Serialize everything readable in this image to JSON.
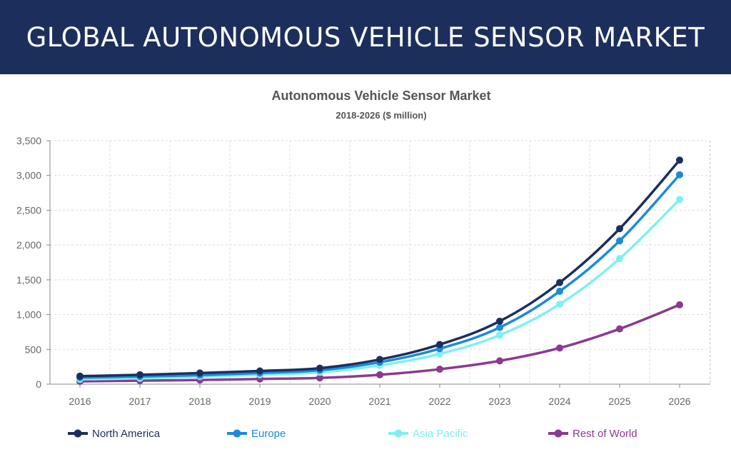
{
  "banner": {
    "title": "GLOBAL AUTONOMOUS VEHICLE SENSOR MARKET"
  },
  "chart_data": {
    "type": "line",
    "title": "Autonomous Vehicle Sensor Market",
    "subtitle": "2018-2026 ($ million)",
    "xlabel": "",
    "ylabel": "",
    "x": [
      "2016",
      "2017",
      "2018",
      "2019",
      "2020",
      "2021",
      "2022",
      "2023",
      "2024",
      "2025",
      "2026"
    ],
    "ylim": [
      0,
      3500
    ],
    "yticks": [
      0,
      500,
      1000,
      1500,
      2000,
      2500,
      3000,
      3500
    ],
    "ytick_labels": [
      "0",
      "500",
      "1,000",
      "1,500",
      "2,000",
      "2,500",
      "3,000",
      "3,500"
    ],
    "grid": true,
    "legend_position": "bottom",
    "series": [
      {
        "name": "North America",
        "color": "#1c2f5c",
        "values": [
          115,
          135,
          160,
          190,
          230,
          355,
          570,
          905,
          1460,
          2235,
          3220
        ]
      },
      {
        "name": "Europe",
        "color": "#1b8ad8",
        "values": [
          95,
          110,
          130,
          160,
          200,
          315,
          510,
          815,
          1335,
          2060,
          3010
        ]
      },
      {
        "name": "Asia Pacific",
        "color": "#7ef0f0",
        "values": [
          70,
          85,
          110,
          135,
          170,
          270,
          435,
          705,
          1150,
          1805,
          2655
        ]
      },
      {
        "name": "Rest of World",
        "color": "#8b3a8f",
        "values": [
          40,
          50,
          60,
          75,
          90,
          135,
          215,
          335,
          520,
          795,
          1140
        ]
      }
    ]
  }
}
